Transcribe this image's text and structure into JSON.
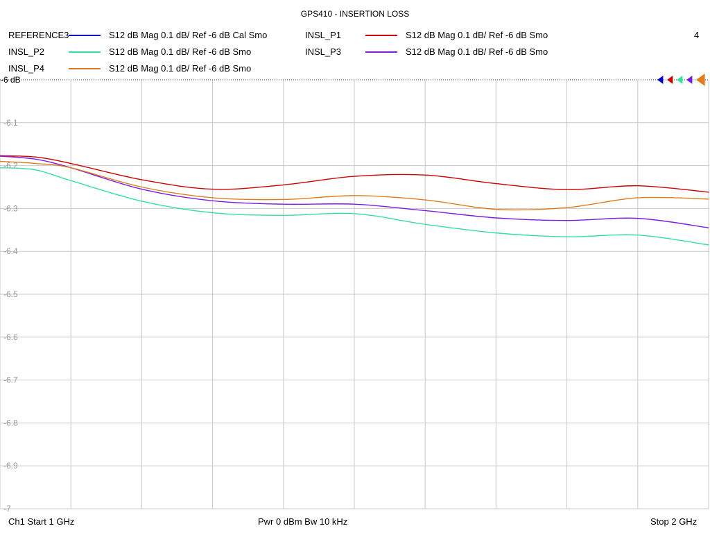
{
  "chart_data": {
    "type": "line",
    "title": "GPS410 - INSERTION LOSS",
    "xlabel": "",
    "ylabel": "",
    "x_range_ghz": [
      1,
      2
    ],
    "ylim": [
      -7,
      -6
    ],
    "y_ticks": [
      "-6 dB",
      "-6.1",
      "-6.2",
      "-6.3",
      "-6.4",
      "-6.5",
      "-6.6",
      "-6.7",
      "-6.8",
      "-6.9",
      "-7"
    ],
    "grid": true,
    "legend_position": "top",
    "x_ghz": [
      1.0,
      1.05,
      1.1,
      1.2,
      1.3,
      1.4,
      1.5,
      1.6,
      1.7,
      1.8,
      1.9,
      2.0
    ],
    "series": [
      {
        "name": "REFERENCE3",
        "description": "S12  dB Mag  0.1 dB/ Ref -6 dB  Cal Smo",
        "color": "#0000cc",
        "values": []
      },
      {
        "name": "INSL_P1",
        "description": "S12  dB Mag  0.1 dB/ Ref -6 dB  Smo",
        "color": "#cc0000",
        "values": [
          -6.177,
          -6.18,
          -6.195,
          -6.233,
          -6.255,
          -6.245,
          -6.225,
          -6.222,
          -6.242,
          -6.256,
          -6.247,
          -6.262
        ]
      },
      {
        "name": "INSL_P2",
        "description": "S12  dB Mag  0.1 dB/ Ref -6 dB  Smo",
        "color": "#33e0a0",
        "values": [
          -6.205,
          -6.21,
          -6.235,
          -6.283,
          -6.31,
          -6.316,
          -6.312,
          -6.337,
          -6.357,
          -6.366,
          -6.362,
          -6.385
        ]
      },
      {
        "name": "INSL_P3",
        "description": "S12  dB Mag  0.1 dB/ Ref -6 dB  Smo",
        "color": "#7a1ee0",
        "values": [
          -6.178,
          -6.185,
          -6.205,
          -6.255,
          -6.282,
          -6.29,
          -6.29,
          -6.305,
          -6.322,
          -6.328,
          -6.323,
          -6.345
        ]
      },
      {
        "name": "INSL_P4",
        "description": "S12  dB Mag  0.1 dB/ Ref -6 dB  Smo",
        "color": "#e07b1e",
        "values": [
          -6.19,
          -6.195,
          -6.205,
          -6.25,
          -6.275,
          -6.279,
          -6.27,
          -6.28,
          -6.302,
          -6.298,
          -6.275,
          -6.278
        ]
      }
    ],
    "marker_colors": [
      "#0000cc",
      "#cc0000",
      "#33e0a0",
      "#7a1ee0",
      "#e07b1e"
    ]
  },
  "marker_count_label": "4",
  "footer": {
    "left": "Ch1  Start  1 GHz",
    "center": "Pwr  0 dBm  Bw  10 kHz",
    "right": "Stop  2 GHz"
  }
}
